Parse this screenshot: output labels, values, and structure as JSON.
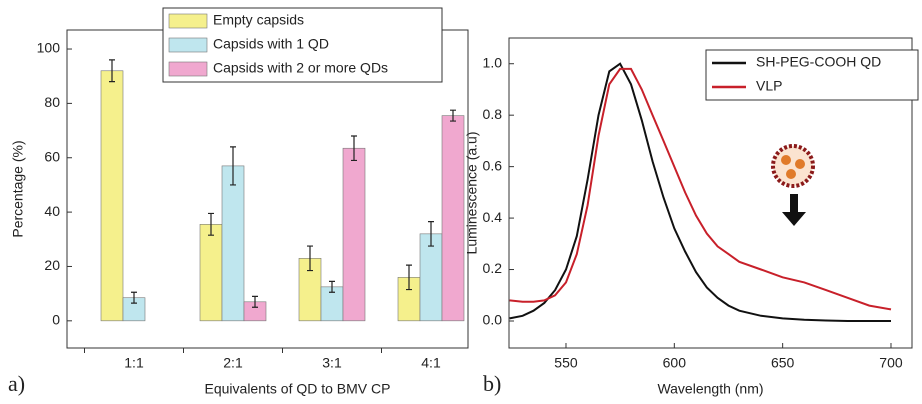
{
  "chart_data": [
    {
      "type": "bar",
      "panel_label": "a)",
      "x_label": "Equivalents of QD to BMV CP",
      "y_label": "Percentage (%)",
      "categories": [
        "1:1",
        "2:1",
        "3:1",
        "4:1"
      ],
      "series": [
        {
          "name": "Empty capsids",
          "color": "#f5f08c",
          "values": [
            92,
            35.5,
            23,
            16
          ],
          "errors": [
            4,
            4,
            4.5,
            4.5
          ]
        },
        {
          "name": "Capsids with 1 QD",
          "color": "#bfe6ee",
          "values": [
            8.5,
            57,
            12.5,
            32
          ],
          "errors": [
            2,
            7,
            2,
            4.5
          ]
        },
        {
          "name": "Capsids with 2 or more QDs",
          "color": "#f0a8cf",
          "values": [
            0,
            7,
            63.5,
            75.5
          ],
          "errors": [
            0,
            2,
            4.5,
            2
          ]
        }
      ],
      "ylim": [
        -10,
        107
      ],
      "yticks": [
        0,
        20,
        40,
        60,
        80,
        100
      ]
    },
    {
      "type": "line",
      "panel_label": "b)",
      "x_label": "Wavelength (nm)",
      "y_label": "Luminescence (a.u)",
      "x": [
        524,
        530,
        535,
        540,
        545,
        550,
        555,
        560,
        565,
        570,
        575,
        580,
        585,
        590,
        595,
        600,
        605,
        610,
        615,
        620,
        625,
        630,
        640,
        650,
        660,
        670,
        680,
        690,
        700
      ],
      "series": [
        {
          "name": "SH-PEG-COOH QD",
          "color": "#111111",
          "values": [
            0.01,
            0.02,
            0.04,
            0.07,
            0.12,
            0.2,
            0.33,
            0.55,
            0.8,
            0.97,
            1.0,
            0.92,
            0.78,
            0.62,
            0.48,
            0.36,
            0.27,
            0.19,
            0.13,
            0.09,
            0.06,
            0.04,
            0.02,
            0.01,
            0.005,
            0.002,
            0.0,
            0.0,
            0.0
          ]
        },
        {
          "name": "VLP",
          "color": "#c8202a",
          "values": [
            0.08,
            0.075,
            0.075,
            0.08,
            0.1,
            0.15,
            0.26,
            0.45,
            0.72,
            0.92,
            0.98,
            0.98,
            0.9,
            0.8,
            0.7,
            0.6,
            0.5,
            0.41,
            0.34,
            0.29,
            0.26,
            0.23,
            0.2,
            0.17,
            0.15,
            0.12,
            0.09,
            0.06,
            0.045
          ]
        }
      ],
      "xlim": [
        523.7,
        709.7
      ],
      "xticks": [
        550,
        600,
        650,
        700
      ],
      "ylim": [
        -0.105,
        1.1
      ],
      "yticks": [
        {
          "value": 0,
          "label": "0.0"
        },
        0.2,
        0.4,
        0.6,
        0.8,
        {
          "value": 1,
          "label": "1.0"
        }
      ]
    }
  ]
}
